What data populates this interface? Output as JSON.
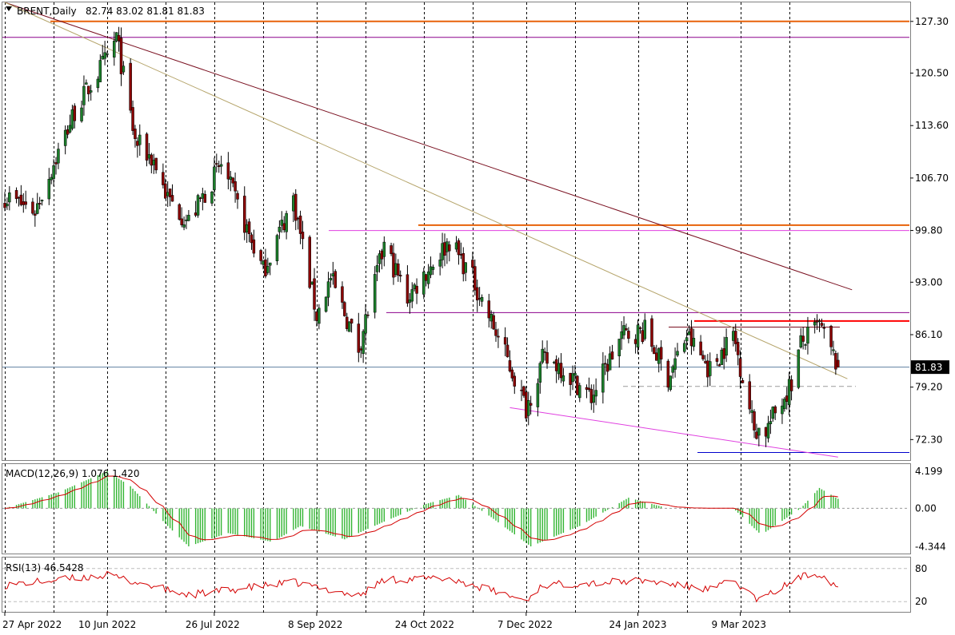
{
  "header": {
    "symbol": "BRENT,Daily",
    "ohlc": "82.74 83.02 81.81 81.83"
  },
  "price_panel": {
    "ticks": [
      "127.30",
      "120.50",
      "113.60",
      "106.70",
      "99.80",
      "93.00",
      "86.10",
      "79.20",
      "72.30"
    ],
    "current_price": "81.83"
  },
  "macd_panel": {
    "label": "MACD(12,26,9) 1.076 1.420",
    "ticks": [
      "4.199",
      "0.00",
      "-4.344"
    ]
  },
  "rsi_panel": {
    "label": "RSI(13) 46.5428",
    "ticks": [
      "80",
      "20"
    ]
  },
  "date_labels": [
    "27 Apr 2022",
    "10 Jun 2022",
    "26 Jul 2022",
    "8 Sep 2022",
    "24 Oct 2022",
    "7 Dec 2022",
    "24 Jan 2023",
    "9 Mar 2023"
  ],
  "colors": {
    "bull": "#1b7f2a",
    "bear": "#8b0000",
    "resistance": "#e8620a",
    "red_level": "#ff0000",
    "magenta": "#e040e0",
    "purple": "#8b008b",
    "trend_dark": "#7a1020",
    "trend_khaki": "#b5a46a",
    "support_blue": "#0000cc",
    "current_line": "#6080a0",
    "macd_hist": "#33b533",
    "signal": "#d40000",
    "rsi_line": "#d40000"
  },
  "chart_data": {
    "type": "candlestick",
    "symbol": "BRENT",
    "timeframe": "Daily",
    "last_bar": {
      "open": 82.74,
      "high": 83.02,
      "low": 81.81,
      "close": 81.83
    },
    "price_range": [
      69.5,
      129.8
    ],
    "anchors": [
      {
        "date": "2022-04-27",
        "close": 104.3
      },
      {
        "date": "2022-05-10",
        "close": 102.4
      },
      {
        "date": "2022-05-27",
        "close": 115.5
      },
      {
        "date": "2022-06-10",
        "close": 122.5
      },
      {
        "date": "2022-06-14",
        "close": 125.2
      },
      {
        "date": "2022-06-22",
        "close": 111.5
      },
      {
        "date": "2022-06-30",
        "close": 109.0
      },
      {
        "date": "2022-07-06",
        "close": 104.0
      },
      {
        "date": "2022-07-15",
        "close": 101.0
      },
      {
        "date": "2022-07-29",
        "close": 108.5
      },
      {
        "date": "2022-08-16",
        "close": 94.5
      },
      {
        "date": "2022-08-29",
        "close": 104.0
      },
      {
        "date": "2022-09-08",
        "close": 88.6
      },
      {
        "date": "2022-09-14",
        "close": 93.5
      },
      {
        "date": "2022-09-26",
        "close": 84.3
      },
      {
        "date": "2022-10-07",
        "close": 97.8
      },
      {
        "date": "2022-10-17",
        "close": 91.0
      },
      {
        "date": "2022-11-04",
        "close": 98.5
      },
      {
        "date": "2022-11-14",
        "close": 93.5
      },
      {
        "date": "2022-11-28",
        "close": 83.5
      },
      {
        "date": "2022-12-07",
        "close": 76.5
      },
      {
        "date": "2022-12-14",
        "close": 82.7
      },
      {
        "date": "2022-12-21",
        "close": 82.2
      },
      {
        "date": "2023-01-04",
        "close": 77.8
      },
      {
        "date": "2023-01-17",
        "close": 86.0
      },
      {
        "date": "2023-01-27",
        "close": 86.6
      },
      {
        "date": "2023-02-06",
        "close": 80.5
      },
      {
        "date": "2023-02-14",
        "close": 86.0
      },
      {
        "date": "2023-02-24",
        "close": 81.5
      },
      {
        "date": "2023-03-06",
        "close": 86.2
      },
      {
        "date": "2023-03-15",
        "close": 73.7
      },
      {
        "date": "2023-03-20",
        "close": 73.5
      },
      {
        "date": "2023-03-31",
        "close": 79.8
      },
      {
        "date": "2023-04-04",
        "close": 84.9
      },
      {
        "date": "2023-04-12",
        "close": 87.3
      },
      {
        "date": "2023-04-20",
        "close": 81.83
      }
    ],
    "horizontal_levels": [
      {
        "price": 127.3,
        "color": "resistance"
      },
      {
        "price": 125.2,
        "color": "purple"
      },
      {
        "price": 100.5,
        "color": "resistance"
      },
      {
        "price": 99.8,
        "color": "magenta"
      },
      {
        "price": 89.0,
        "color": "purple"
      },
      {
        "price": 87.9,
        "color": "red_level"
      },
      {
        "price": 87.1,
        "color": "trend_dark"
      },
      {
        "price": 79.3,
        "color": "dashed_gray"
      },
      {
        "price": 70.6,
        "color": "support_blue"
      }
    ],
    "trendlines": [
      {
        "from": {
          "date": "2022-04-27",
          "price": 129.8
        },
        "to": {
          "date": "2023-04-26",
          "price": 92.0
        },
        "color": "trend_dark"
      },
      {
        "from": {
          "date": "2022-04-27",
          "price": 129.8
        },
        "to": {
          "date": "2023-04-24",
          "price": 80.3
        },
        "color": "trend_khaki"
      },
      {
        "from": {
          "date": "2022-11-30",
          "price": 76.5
        },
        "to": {
          "date": "2023-04-20",
          "price": 70.0
        },
        "color": "magenta"
      }
    ],
    "macd": {
      "params": "12,26,9",
      "value": 1.076,
      "signal": 1.42,
      "range": [
        -5.2,
        5.0
      ],
      "anchors": [
        {
          "date": "2022-04-27",
          "value": 0.0
        },
        {
          "date": "2022-05-20",
          "value": 1.8
        },
        {
          "date": "2022-06-10",
          "value": 4.2
        },
        {
          "date": "2022-06-20",
          "value": 2.5
        },
        {
          "date": "2022-07-06",
          "value": -2.0
        },
        {
          "date": "2022-07-15",
          "value": -4.3
        },
        {
          "date": "2022-08-01",
          "value": -2.8
        },
        {
          "date": "2022-08-20",
          "value": -3.8
        },
        {
          "date": "2022-09-01",
          "value": -2.0
        },
        {
          "date": "2022-09-20",
          "value": -3.5
        },
        {
          "date": "2022-10-07",
          "value": -1.5
        },
        {
          "date": "2022-10-25",
          "value": 0.5
        },
        {
          "date": "2022-11-08",
          "value": 1.5
        },
        {
          "date": "2022-11-22",
          "value": -1.0
        },
        {
          "date": "2022-12-09",
          "value": -4.3
        },
        {
          "date": "2022-12-30",
          "value": -2.0
        },
        {
          "date": "2023-01-20",
          "value": 1.2
        },
        {
          "date": "2023-02-06",
          "value": 0.0
        },
        {
          "date": "2023-03-06",
          "value": 0.0
        },
        {
          "date": "2023-03-18",
          "value": -3.0
        },
        {
          "date": "2023-04-04",
          "value": 0.0
        },
        {
          "date": "2023-04-12",
          "value": 2.3
        },
        {
          "date": "2023-04-20",
          "value": 1.076
        }
      ]
    },
    "rsi": {
      "period": 13,
      "value": 46.5428,
      "range": [
        0,
        100
      ],
      "levels": [
        80,
        20
      ],
      "anchors": [
        {
          "date": "2022-04-27",
          "value": 50
        },
        {
          "date": "2022-06-10",
          "value": 68
        },
        {
          "date": "2022-07-15",
          "value": 32
        },
        {
          "date": "2022-08-29",
          "value": 55
        },
        {
          "date": "2022-09-26",
          "value": 30
        },
        {
          "date": "2022-10-07",
          "value": 60
        },
        {
          "date": "2022-11-04",
          "value": 62
        },
        {
          "date": "2022-12-07",
          "value": 22
        },
        {
          "date": "2022-12-14",
          "value": 50
        },
        {
          "date": "2023-01-27",
          "value": 58
        },
        {
          "date": "2023-02-24",
          "value": 42
        },
        {
          "date": "2023-03-06",
          "value": 58
        },
        {
          "date": "2023-03-17",
          "value": 22
        },
        {
          "date": "2023-04-04",
          "value": 65
        },
        {
          "date": "2023-04-12",
          "value": 72
        },
        {
          "date": "2023-04-20",
          "value": 46.5428
        }
      ]
    }
  }
}
